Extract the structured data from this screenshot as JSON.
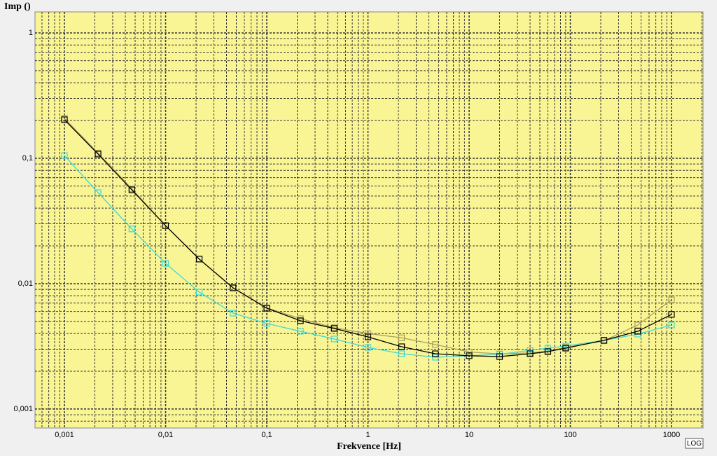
{
  "chart_data": {
    "type": "line",
    "y_axis_label": "Imp ()",
    "x_axis_label": "Frekvence [Hz]",
    "scale_button": "LOG",
    "xscale": "log",
    "yscale": "log",
    "grid": true,
    "minor_grid": true,
    "background": "#faf594",
    "x": [
      0.001,
      0.00215,
      0.00464,
      0.01,
      0.0215,
      0.0464,
      0.1,
      0.215,
      0.464,
      1,
      2.15,
      4.64,
      10,
      20,
      40,
      60,
      90,
      215,
      464,
      1000
    ],
    "series": [
      {
        "color": "#a8a05a",
        "values": [
          0.208,
          0.11,
          0.057,
          0.029,
          0.0157,
          0.0093,
          0.0064,
          0.00526,
          0.00445,
          0.004,
          0.0037,
          0.00327,
          0.00285,
          0.00275,
          0.0028,
          0.0029,
          0.0031,
          0.0035,
          0.00468,
          0.00743
        ]
      },
      {
        "color": "#3fd8d8",
        "values": [
          0.105,
          0.0532,
          0.0273,
          0.0145,
          0.00857,
          0.00582,
          0.00481,
          0.00417,
          0.00362,
          0.0031,
          0.00276,
          0.00259,
          0.00266,
          0.00273,
          0.00294,
          0.00306,
          0.00318,
          0.00353,
          0.00396,
          0.00468
        ]
      },
      {
        "color": "#000000",
        "values": [
          0.203,
          0.108,
          0.056,
          0.029,
          0.0157,
          0.00925,
          0.00637,
          0.00506,
          0.00439,
          0.00376,
          0.00314,
          0.00276,
          0.00266,
          0.00262,
          0.00276,
          0.00287,
          0.00306,
          0.00353,
          0.00417,
          0.00568
        ]
      }
    ],
    "xlim": [
      0.000512,
      2048
    ],
    "ylim": [
      0.000706,
      1.47
    ],
    "xticks": [
      {
        "value": 0.001,
        "label": "0,001"
      },
      {
        "value": 0.01,
        "label": "0,01"
      },
      {
        "value": 0.1,
        "label": "0,1"
      },
      1,
      10,
      100,
      1000
    ],
    "yticks": [
      {
        "value": 0.001,
        "label": "0,001"
      },
      {
        "value": 0.01,
        "label": "0,01"
      },
      {
        "value": 0.1,
        "label": "0,1"
      },
      1
    ]
  }
}
